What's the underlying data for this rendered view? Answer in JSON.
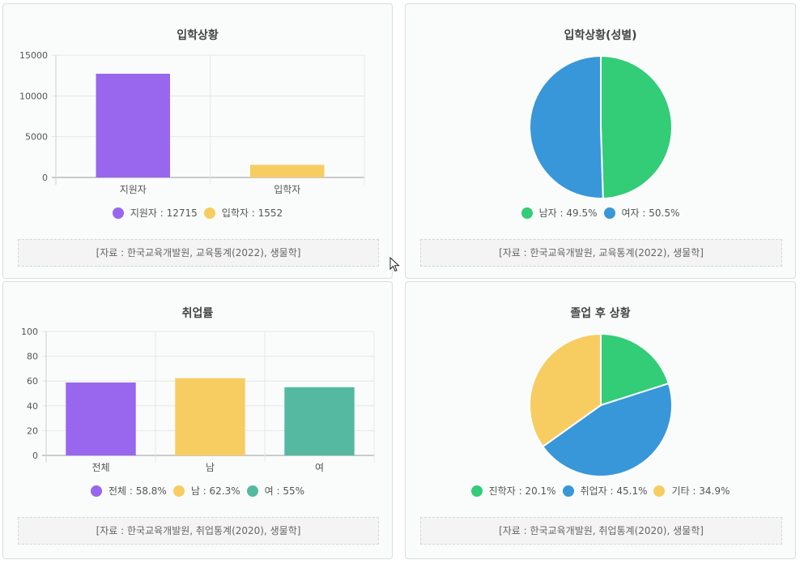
{
  "colors": {
    "purple": "#9966ee",
    "yellow": "#f7cd62",
    "teal": "#55b9a2",
    "green": "#33cc77",
    "blue": "#3897d8"
  },
  "cards": [
    {
      "title": "입학상황",
      "source": "[자료 : 한국교육개발원, 교육통계(2022), 생물학]",
      "legend": [
        {
          "label": "지원자 : 12715",
          "color": "#9966ee"
        },
        {
          "label": "입학자 : 1552",
          "color": "#f7cd62"
        }
      ]
    },
    {
      "title": "입학상황(성별)",
      "source": "[자료 : 한국교육개발원, 교육통계(2022), 생물학]",
      "legend": [
        {
          "label": "남자 : 49.5%",
          "color": "#33cc77"
        },
        {
          "label": "여자 : 50.5%",
          "color": "#3897d8"
        }
      ]
    },
    {
      "title": "취업률",
      "source": "[자료 : 한국교육개발원, 취업통계(2020), 생물학]",
      "legend": [
        {
          "label": "전체 : 58.8%",
          "color": "#9966ee"
        },
        {
          "label": "남 : 62.3%",
          "color": "#f7cd62"
        },
        {
          "label": "여 : 55%",
          "color": "#55b9a2"
        }
      ]
    },
    {
      "title": "졸업 후 상황",
      "source": "[자료 : 한국교육개발원, 취업통계(2020), 생물학]",
      "legend": [
        {
          "label": "진학자 : 20.1%",
          "color": "#33cc77"
        },
        {
          "label": "취업자 : 45.1%",
          "color": "#3897d8"
        },
        {
          "label": "기타 : 34.9%",
          "color": "#f7cd62"
        }
      ]
    }
  ],
  "chart_data": [
    {
      "type": "bar",
      "title": "입학상황",
      "categories": [
        "지원자",
        "입학자"
      ],
      "values": [
        12715,
        1552
      ],
      "colors": [
        "#9966ee",
        "#f7cd62"
      ],
      "yticks": [
        "0",
        "5000",
        "10000",
        "15000"
      ],
      "ylim": [
        0,
        15000
      ],
      "grid": true
    },
    {
      "type": "pie",
      "title": "입학상황(성별)",
      "labels": [
        "남자",
        "여자"
      ],
      "values": [
        49.5,
        50.5
      ],
      "colors": [
        "#33cc77",
        "#3897d8"
      ]
    },
    {
      "type": "bar",
      "title": "취업률",
      "categories": [
        "전체",
        "남",
        "여"
      ],
      "values": [
        58.8,
        62.3,
        55
      ],
      "colors": [
        "#9966ee",
        "#f7cd62",
        "#55b9a2"
      ],
      "yticks": [
        "0",
        "20",
        "40",
        "60",
        "80",
        "100"
      ],
      "ylim": [
        0,
        100
      ],
      "grid": true
    },
    {
      "type": "pie",
      "title": "졸업 후 상황",
      "labels": [
        "진학자",
        "취업자",
        "기타"
      ],
      "values": [
        20.1,
        45.1,
        34.9
      ],
      "colors": [
        "#33cc77",
        "#3897d8",
        "#f7cd62"
      ]
    }
  ]
}
